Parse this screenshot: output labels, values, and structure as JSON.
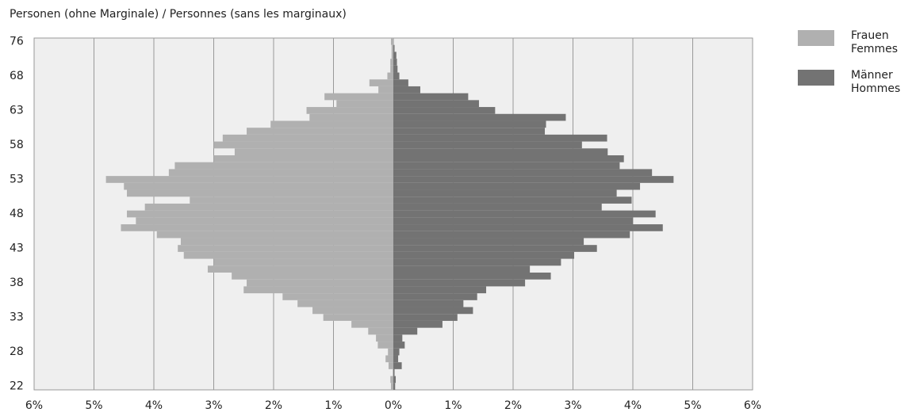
{
  "chart_data": {
    "type": "pyramid",
    "y_axis_label": "Personen (ohne Marginale) / Personnes (sans les marginaux)",
    "categories": [
      "22",
      null,
      null,
      null,
      null,
      "28",
      null,
      null,
      null,
      null,
      "33",
      null,
      null,
      null,
      null,
      "38",
      null,
      null,
      null,
      null,
      "43",
      null,
      null,
      null,
      null,
      "48",
      null,
      null,
      null,
      null,
      "53",
      null,
      null,
      null,
      null,
      "58",
      null,
      null,
      null,
      null,
      "63",
      null,
      null,
      null,
      null,
      "68",
      null,
      null,
      null,
      null,
      "76"
    ],
    "series": [
      {
        "name": "Frauen\nFemmes",
        "color": "#b0b0b0",
        "values": [
          -0.04,
          -0.05,
          -0.01,
          -0.08,
          -0.13,
          -0.09,
          -0.26,
          -0.29,
          -0.42,
          -0.7,
          -1.17,
          -1.35,
          -1.6,
          -1.85,
          -2.5,
          -2.45,
          -2.7,
          -3.1,
          -3.0,
          -3.5,
          -3.6,
          -3.55,
          -3.95,
          -4.55,
          -4.3,
          -4.45,
          -4.15,
          -3.4,
          -4.45,
          -4.5,
          -4.8,
          -3.75,
          -3.65,
          -3.0,
          -2.65,
          -3.0,
          -2.85,
          -2.45,
          -2.05,
          -1.4,
          -1.45,
          -0.95,
          -1.15,
          -0.25,
          -0.4,
          -0.1,
          -0.05,
          -0.05,
          -0.03,
          -0.03,
          -0.04
        ]
      },
      {
        "name": "Männer\nHommes",
        "color": "#737373",
        "values": [
          0.03,
          0.04,
          0.02,
          0.14,
          0.08,
          0.1,
          0.19,
          0.15,
          0.4,
          0.82,
          1.07,
          1.33,
          1.17,
          1.4,
          1.55,
          2.2,
          2.63,
          2.28,
          2.8,
          3.02,
          3.4,
          3.18,
          3.95,
          4.5,
          4.0,
          4.38,
          3.48,
          3.98,
          3.73,
          4.12,
          4.68,
          4.32,
          3.78,
          3.85,
          3.58,
          3.15,
          3.57,
          2.53,
          2.55,
          2.88,
          1.7,
          1.43,
          1.25,
          0.45,
          0.25,
          0.1,
          0.07,
          0.06,
          0.05,
          0.02,
          0
        ]
      }
    ],
    "xlim": [
      -6,
      6
    ],
    "xticks": [
      {
        "value": -6,
        "label": "6%"
      },
      {
        "value": -5,
        "label": "5%"
      },
      {
        "value": -4,
        "label": "4%"
      },
      {
        "value": -3,
        "label": "3%"
      },
      {
        "value": -2,
        "label": "2%"
      },
      {
        "value": -1,
        "label": "1%"
      },
      {
        "value": 0,
        "label": "0%"
      },
      {
        "value": 1,
        "label": "1%"
      },
      {
        "value": 2,
        "label": "2%"
      },
      {
        "value": 3,
        "label": "3%"
      },
      {
        "value": 4,
        "label": "4%"
      },
      {
        "value": 5,
        "label": "5%"
      },
      {
        "value": 6,
        "label": "6%"
      }
    ],
    "grid": true
  }
}
